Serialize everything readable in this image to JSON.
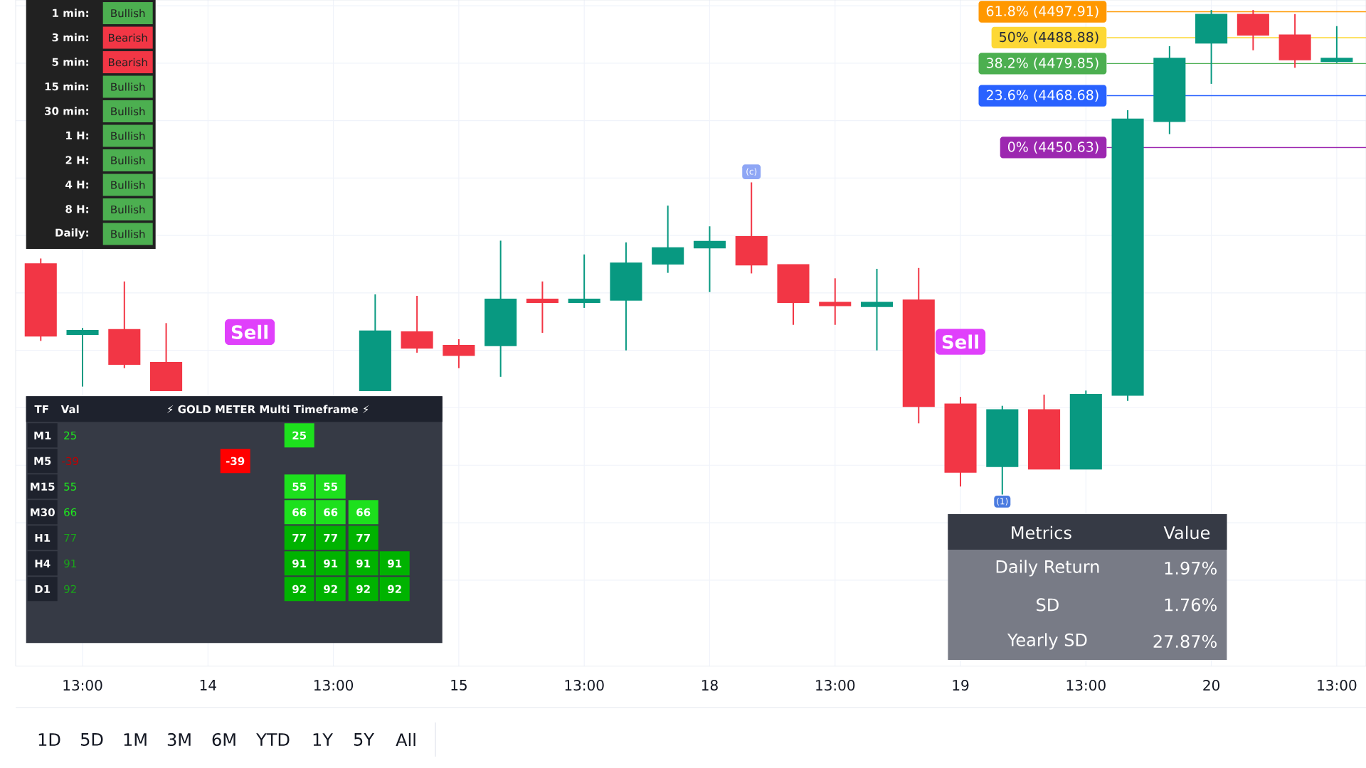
{
  "chart_data": {
    "type": "candlestick",
    "categories": [
      null,
      "13:00",
      null,
      null,
      "14",
      null,
      null,
      "13:00",
      null,
      null,
      "15",
      null,
      null,
      "13:00",
      null,
      null,
      "18",
      null,
      null,
      "13:00",
      null,
      null,
      "19",
      null,
      null,
      "13:00",
      null,
      null,
      "20",
      null,
      null,
      "13:00"
    ],
    "ohlc": [
      [
        4410.1,
        4412.0,
        4383.3,
        4385.0
      ],
      [
        4385.6,
        4387.8,
        4367.4,
        4386.9
      ],
      [
        4387.2,
        4404.0,
        4373.8,
        4375.2
      ],
      [
        4375.8,
        4389.5,
        4366.0,
        4366.0
      ],
      null,
      null,
      null,
      null,
      [
        4366.0,
        4399.5,
        4366.0,
        4386.7
      ],
      [
        4386.4,
        4399.0,
        4379.2,
        4380.8
      ],
      [
        4381.7,
        4383.9,
        4373.8,
        4378.3
      ],
      [
        4381.7,
        4418.2,
        4370.8,
        4397.8
      ],
      [
        4397.8,
        4404.0,
        4386.1,
        4396.7
      ],
      [
        4396.7,
        4413.4,
        4394.8,
        4397.8
      ],
      [
        4397.5,
        4417.6,
        4380.0,
        4410.4
      ],
      [
        4410.1,
        4430.4,
        4407.0,
        4415.7
      ],
      [
        4415.7,
        4423.2,
        4400.3,
        4417.9
      ],
      [
        4419.6,
        4438.5,
        4406.8,
        4409.8
      ],
      [
        4409.8,
        4409.8,
        4388.9,
        4396.7
      ],
      [
        4396.7,
        4405.1,
        4388.9,
        4395.6
      ],
      [
        4395.3,
        4408.4,
        4380.0,
        4396.7
      ],
      [
        4397.5,
        4408.7,
        4354.6,
        4360.5
      ],
      [
        4361.3,
        4363.8,
        4332.6,
        4337.6
      ],
      [
        4339.6,
        4360.7,
        4329.8,
        4359.3
      ],
      [
        4359.3,
        4364.6,
        4338.7,
        4338.7
      ],
      [
        4338.7,
        4366.0,
        4338.7,
        4364.6
      ],
      [
        4364.4,
        4463.6,
        4362.4,
        4460.5
      ],
      [
        4459.7,
        4485.9,
        4455.3,
        4481.7
      ],
      [
        4487.0,
        4498.5,
        4472.8,
        4497.0
      ],
      [
        4497.0,
        4498.5,
        4484.5,
        4489.8
      ],
      [
        4489.8,
        4497.1,
        4478.4,
        4481.2
      ],
      [
        4480.6,
        4492.9,
        4480.1,
        4481.7
      ]
    ],
    "colors": [
      "#f23645",
      "#089981",
      "#f23645",
      "#f23645",
      null,
      null,
      null,
      null,
      "#089981",
      "#f23645",
      "#f23645",
      "#089981",
      "#f23645",
      "#089981",
      "#089981",
      "#089981",
      "#089981",
      "#f23645",
      "#f23645",
      "#f23645",
      "#089981",
      "#f23645",
      "#f23645",
      "#089981",
      "#f23645",
      "#089981",
      "#089981",
      "#089981",
      "#089981",
      "#f23645",
      "#f23645",
      "#089981"
    ],
    "ylim": [
      4270,
      4502
    ],
    "yticks": [
      {
        "value": 4300,
        "label": null
      },
      {
        "value": 4320,
        "label": null
      },
      {
        "value": 4340,
        "label": null
      },
      {
        "value": 4360,
        "label": null
      },
      {
        "value": 4380,
        "label": null
      },
      {
        "value": 4400,
        "label": null
      },
      {
        "value": 4420,
        "label": null
      },
      {
        "value": 4440,
        "label": null
      },
      {
        "value": 4460,
        "label": null
      },
      {
        "value": 4480,
        "label": null
      },
      {
        "value": 4500,
        "label": null
      }
    ],
    "tick_labels": "x",
    "grid": true,
    "ref_lines": [
      {
        "axis": "y",
        "value": 4497.91,
        "label": "61.8% (4497.91)",
        "color": "#ff9800"
      },
      {
        "axis": "y",
        "value": 4488.88,
        "label": "50% (4488.88)",
        "color": "#fdd835"
      },
      {
        "axis": "y",
        "value": 4479.85,
        "label": "38.2% (4479.85)",
        "color": "#4caf50"
      },
      {
        "axis": "y",
        "value": 4468.68,
        "label": "23.6% (4468.68)",
        "color": "#2962ff"
      },
      {
        "axis": "y",
        "value": 4450.63,
        "label": "0% (4450.63)",
        "color": "#9c27b0"
      }
    ],
    "annotations": [
      "1 min:",
      "3 min:",
      "5 min:",
      "15 min:",
      "30 min:",
      "1 H:",
      "2 H:",
      "4 H:",
      "8 H:",
      "Daily:",
      "Bullish",
      "Bearish",
      "Bearish",
      "Bullish",
      "Bullish",
      "Bullish",
      "Bullish",
      "Bullish",
      "Bullish",
      "Bullish",
      "TF",
      "Val",
      "⚡ GOLD METER Multi Timeframe ⚡",
      "M1",
      "M5",
      "M15",
      "M30",
      "H1",
      "H4",
      "D1",
      "25",
      "-39",
      "55",
      "66",
      "77",
      "91",
      "92",
      "25",
      "-39",
      "55",
      "55",
      "66",
      "66",
      "66",
      "77",
      "77",
      "77",
      "91",
      "91",
      "91",
      "91",
      "92",
      "92",
      "92",
      "92",
      "Metrics",
      "Value",
      "Daily Return",
      "1.97%",
      "SD",
      "1.76%",
      "Yearly SD",
      "27.87%",
      "1D",
      "5D",
      "1M",
      "3M",
      "6M",
      "YTD",
      "1Y",
      "5Y",
      "All",
      "Sell",
      "Sell",
      "(c)",
      "(1)"
    ]
  }
}
